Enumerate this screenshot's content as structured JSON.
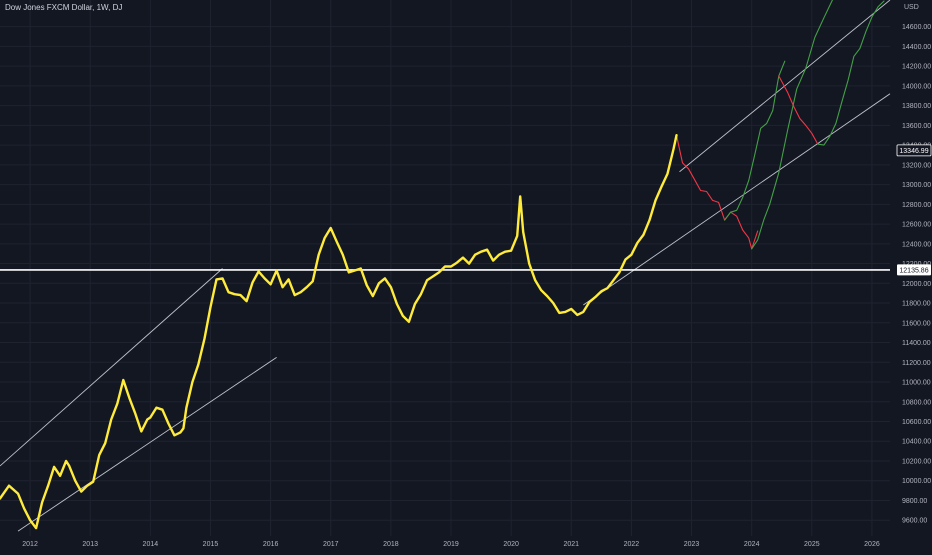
{
  "header": {
    "symbol_title": "Dow Jones FXCM Dollar, 1W, DJ"
  },
  "colors": {
    "background": "#131722",
    "grid": "#1f2330",
    "price_line": "#ffeb3b",
    "projection_down": "#f23645",
    "projection_up": "#43a047",
    "channel_lines": "#d1d4dc",
    "horizontal_line": "#ffffff",
    "axis_text": "#b2b5be"
  },
  "chart_data": {
    "type": "line",
    "unit_label": "USD",
    "x_axis": {
      "ticks": [
        "2012",
        "2013",
        "2014",
        "2015",
        "2016",
        "2017",
        "2018",
        "2019",
        "2020",
        "2021",
        "2022",
        "2023",
        "2024",
        "2025",
        "2026"
      ],
      "range": [
        2011.5,
        2026.3
      ]
    },
    "y_axis": {
      "ticks": [
        "9600.00",
        "9800.00",
        "10000.00",
        "10200.00",
        "10400.00",
        "10600.00",
        "10800.00",
        "11000.00",
        "11200.00",
        "11400.00",
        "11600.00",
        "11800.00",
        "12000.00",
        "12200.00",
        "12400.00",
        "12600.00",
        "12800.00",
        "13000.00",
        "13200.00",
        "13400.00",
        "13600.00",
        "13800.00",
        "14000.00",
        "14200.00",
        "14400.00",
        "14600.00"
      ],
      "range": [
        9440,
        14870
      ]
    },
    "grid": true,
    "price_tags": [
      {
        "label": "13346.99",
        "value": 13346.99,
        "style": "outline"
      },
      {
        "label": "12135.86",
        "value": 12135.86,
        "style": "filled"
      }
    ],
    "horizontal_lines": [
      {
        "value": 12135.86
      }
    ],
    "channel_lines": [
      {
        "points": [
          [
            2011.5,
            10150
          ],
          [
            2015.2,
            12150
          ]
        ]
      },
      {
        "points": [
          [
            2011.8,
            9490
          ],
          [
            2016.1,
            11250
          ]
        ]
      },
      {
        "points": [
          [
            2022.8,
            13130
          ],
          [
            2026.3,
            14870
          ]
        ]
      },
      {
        "points": [
          [
            2021.2,
            11780
          ],
          [
            2026.3,
            13920
          ]
        ]
      }
    ],
    "series": [
      {
        "style": "price",
        "x": [
          2011.5,
          2011.65,
          2011.8,
          2011.9,
          2012.0,
          2012.1,
          2012.2,
          2012.3,
          2012.4,
          2012.5,
          2012.6,
          2012.65,
          2012.75,
          2012.85,
          2012.95,
          2013.05,
          2013.15,
          2013.25,
          2013.35,
          2013.45,
          2013.5,
          2013.55,
          2013.65,
          2013.75,
          2013.85,
          2013.95,
          2014.0,
          2014.1,
          2014.2,
          2014.3,
          2014.4,
          2014.5,
          2014.55,
          2014.6,
          2014.7,
          2014.8,
          2014.9,
          2015.0,
          2015.1,
          2015.2,
          2015.3,
          2015.4,
          2015.5,
          2015.6,
          2015.7,
          2015.8,
          2015.9,
          2016.0,
          2016.1,
          2016.2,
          2016.3,
          2016.4,
          2016.5,
          2016.6,
          2016.7,
          2016.8,
          2016.9,
          2017.0,
          2017.1,
          2017.2,
          2017.3,
          2017.4,
          2017.5,
          2017.6,
          2017.7,
          2017.8,
          2017.9,
          2018.0,
          2018.1,
          2018.2,
          2018.3,
          2018.4,
          2018.5,
          2018.6,
          2018.7,
          2018.8,
          2018.9,
          2019.0,
          2019.1,
          2019.2,
          2019.3,
          2019.4,
          2019.5,
          2019.6,
          2019.7,
          2019.8,
          2019.9,
          2020.0,
          2020.1,
          2020.15,
          2020.2,
          2020.3,
          2020.4,
          2020.5,
          2020.6,
          2020.7,
          2020.8,
          2020.9,
          2021.0,
          2021.1,
          2021.2,
          2021.3,
          2021.4,
          2021.5,
          2021.6,
          2021.7,
          2021.8,
          2021.9,
          2022.0,
          2022.1,
          2022.2,
          2022.3,
          2022.4,
          2022.5,
          2022.6,
          2022.7,
          2022.75
        ],
        "values": [
          9820,
          9950,
          9870,
          9720,
          9600,
          9520,
          9780,
          9950,
          10140,
          10050,
          10200,
          10150,
          10000,
          9890,
          9950,
          9990,
          10260,
          10380,
          10620,
          10780,
          10900,
          11020,
          10840,
          10680,
          10500,
          10620,
          10640,
          10740,
          10720,
          10580,
          10460,
          10490,
          10530,
          10740,
          11000,
          11180,
          11440,
          11760,
          12040,
          12050,
          11910,
          11890,
          11880,
          11820,
          12010,
          12120,
          12050,
          11990,
          12130,
          11960,
          12040,
          11880,
          11910,
          11960,
          12020,
          12290,
          12460,
          12560,
          12420,
          12290,
          12110,
          12130,
          12150,
          11980,
          11870,
          12000,
          12050,
          11960,
          11790,
          11670,
          11610,
          11790,
          11890,
          12030,
          12070,
          12110,
          12170,
          12170,
          12210,
          12260,
          12200,
          12290,
          12320,
          12340,
          12230,
          12290,
          12320,
          12330,
          12480,
          12880,
          12520,
          12200,
          12030,
          11930,
          11870,
          11800,
          11700,
          11710,
          11740,
          11680,
          11710,
          11810,
          11860,
          11920,
          11950,
          12030,
          12110,
          12240,
          12290,
          12410,
          12490,
          12640,
          12840,
          12980,
          13110,
          13360,
          13500
        ]
      },
      {
        "style": "projection_down",
        "x": [
          2022.75,
          2022.85,
          2022.95,
          2023.05,
          2023.15,
          2023.25,
          2023.35,
          2023.45,
          2023.55,
          2023.65,
          2023.75,
          2023.85,
          2023.95,
          2024.0,
          2024.1
        ],
        "values": [
          13500,
          13220,
          13160,
          13050,
          12940,
          12930,
          12840,
          12820,
          12640,
          12720,
          12680,
          12540,
          12460,
          12350,
          12530
        ]
      },
      {
        "style": "projection_up",
        "x": [
          2023.55,
          2023.65,
          2023.75,
          2023.85,
          2023.95,
          2024.05,
          2024.15,
          2024.25,
          2024.35,
          2024.45,
          2024.55
        ],
        "values": [
          12640,
          12720,
          12740,
          12870,
          13040,
          13300,
          13570,
          13620,
          13750,
          14100,
          14250
        ]
      },
      {
        "style": "projection_down",
        "x": [
          2024.45,
          2024.6,
          2024.7,
          2024.8,
          2024.9,
          2025.0,
          2025.1
        ],
        "values": [
          14100,
          13930,
          13790,
          13670,
          13600,
          13520,
          13410
        ]
      },
      {
        "style": "projection_up",
        "x": [
          2024.0,
          2024.1,
          2024.2,
          2024.3,
          2024.45,
          2024.6,
          2024.75,
          2024.9,
          2025.05,
          2025.2,
          2025.35
        ],
        "values": [
          12350,
          12440,
          12640,
          12800,
          13120,
          13560,
          13970,
          14180,
          14490,
          14690,
          14880
        ]
      },
      {
        "style": "projection_up",
        "x": [
          2025.1,
          2025.2,
          2025.3,
          2025.4,
          2025.5,
          2025.6,
          2025.7,
          2025.8,
          2025.9,
          2026.0,
          2026.1,
          2026.2
        ],
        "values": [
          13410,
          13400,
          13490,
          13620,
          13840,
          14050,
          14300,
          14380,
          14550,
          14700,
          14800,
          14860
        ]
      }
    ]
  }
}
